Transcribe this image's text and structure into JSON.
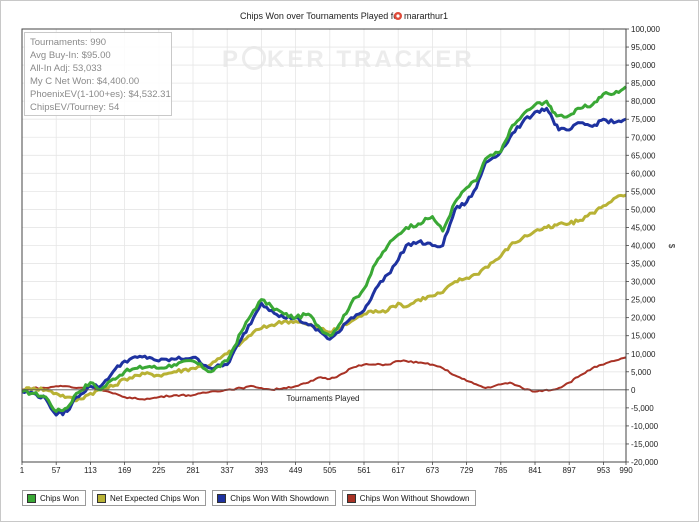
{
  "chart_data": {
    "type": "line",
    "title": "Chips Won over Tournaments Played for",
    "player": "mararthur1",
    "xlabel": "Tournaments Played",
    "ylabel": "$",
    "xlim": [
      1,
      990
    ],
    "ylim": [
      -20000,
      100000
    ],
    "x_ticks": [
      1,
      57,
      113,
      169,
      225,
      281,
      337,
      393,
      449,
      505,
      561,
      617,
      673,
      729,
      785,
      841,
      897,
      953,
      990
    ],
    "y_ticks": [
      -20000,
      -15000,
      -10000,
      -5000,
      0,
      5000,
      10000,
      15000,
      20000,
      25000,
      30000,
      35000,
      40000,
      45000,
      50000,
      55000,
      60000,
      65000,
      70000,
      75000,
      80000,
      85000,
      90000,
      95000,
      100000
    ],
    "y_tick_labels": [
      "-20,000",
      "-15,000",
      "-10,000",
      "-5,000",
      "0",
      "5,000",
      "10,000",
      "15,000",
      "20,000",
      "25,000",
      "30,000",
      "35,000",
      "40,000",
      "45,000",
      "50,000",
      "55,000",
      "60,000",
      "65,000",
      "70,000",
      "75,000",
      "80,000",
      "85,000",
      "90,000",
      "95,000",
      "100,000"
    ],
    "grid": true,
    "legend_position": "bottom-left",
    "series": [
      {
        "name": "Chips Won",
        "color": "#3aa835",
        "x": [
          1,
          20,
          40,
          57,
          75,
          90,
          113,
          130,
          150,
          169,
          190,
          210,
          225,
          250,
          281,
          310,
          337,
          360,
          380,
          393,
          410,
          430,
          449,
          470,
          490,
          505,
          520,
          540,
          561,
          580,
          600,
          617,
          630,
          650,
          673,
          690,
          710,
          729,
          745,
          760,
          785,
          800,
          820,
          841,
          860,
          870,
          880,
          897,
          915,
          935,
          953,
          970,
          990
        ],
        "y": [
          -500,
          -1000,
          -2000,
          -6000,
          -5000,
          -1000,
          2000,
          0,
          3000,
          5000,
          6000,
          6500,
          6000,
          7000,
          8000,
          5000,
          8000,
          16000,
          22000,
          25000,
          23000,
          21000,
          20000,
          21000,
          17000,
          15000,
          18000,
          24000,
          28000,
          35000,
          40000,
          43000,
          45000,
          46000,
          48000,
          44000,
          52000,
          56000,
          58000,
          64000,
          66000,
          72000,
          76000,
          79000,
          80000,
          77000,
          76000,
          76000,
          78000,
          79000,
          82000,
          82000,
          84000
        ]
      },
      {
        "name": "Net Expected Chips Won",
        "color": "#b8b235",
        "x": [
          1,
          20,
          40,
          57,
          75,
          90,
          113,
          130,
          150,
          169,
          190,
          210,
          225,
          250,
          281,
          310,
          337,
          360,
          380,
          393,
          410,
          430,
          449,
          470,
          490,
          505,
          520,
          540,
          561,
          580,
          600,
          617,
          630,
          650,
          673,
          690,
          710,
          729,
          745,
          760,
          785,
          800,
          820,
          841,
          860,
          870,
          880,
          897,
          915,
          935,
          953,
          970,
          990
        ],
        "y": [
          0,
          500,
          0,
          -1000,
          -2000,
          -3000,
          -1000,
          0,
          1000,
          3000,
          4000,
          4500,
          4000,
          5000,
          6000,
          7000,
          10000,
          13000,
          16000,
          17000,
          18000,
          19000,
          19000,
          18000,
          17000,
          16000,
          17000,
          19000,
          21000,
          22000,
          22000,
          24000,
          23000,
          25000,
          26000,
          27000,
          30000,
          31000,
          32000,
          34000,
          37000,
          40000,
          42000,
          44000,
          45000,
          45000,
          46000,
          46000,
          47000,
          49000,
          51000,
          53000,
          54000
        ]
      },
      {
        "name": "Chips Won With Showdown",
        "color": "#1e32a0",
        "x": [
          1,
          20,
          40,
          57,
          75,
          90,
          113,
          130,
          150,
          169,
          190,
          210,
          225,
          250,
          281,
          310,
          337,
          360,
          380,
          393,
          410,
          430,
          449,
          470,
          490,
          505,
          520,
          540,
          561,
          580,
          600,
          617,
          630,
          650,
          673,
          690,
          710,
          729,
          745,
          760,
          785,
          800,
          820,
          841,
          860,
          870,
          880,
          897,
          915,
          935,
          953,
          970,
          990
        ],
        "y": [
          -500,
          -1000,
          -2500,
          -7000,
          -6000,
          -2000,
          1000,
          1000,
          5000,
          8000,
          9000,
          9000,
          8000,
          8500,
          9000,
          6000,
          7000,
          14000,
          20000,
          24000,
          22000,
          20000,
          20000,
          18000,
          16000,
          14000,
          16000,
          20000,
          22000,
          28000,
          32000,
          36000,
          40000,
          41000,
          40000,
          40000,
          50000,
          52000,
          56000,
          63000,
          66000,
          70000,
          74000,
          77000,
          78000,
          75000,
          72000,
          72000,
          74000,
          73000,
          75000,
          74000,
          75000
        ]
      },
      {
        "name": "Chips Won Without Showdown",
        "color": "#a83225",
        "x": [
          1,
          20,
          40,
          57,
          75,
          90,
          113,
          130,
          150,
          169,
          190,
          210,
          225,
          250,
          281,
          310,
          337,
          360,
          380,
          393,
          410,
          430,
          449,
          470,
          490,
          505,
          520,
          540,
          561,
          580,
          600,
          617,
          630,
          650,
          673,
          690,
          710,
          729,
          745,
          760,
          785,
          800,
          820,
          841,
          860,
          870,
          880,
          897,
          915,
          935,
          953,
          970,
          990
        ],
        "y": [
          0,
          500,
          500,
          1000,
          1000,
          500,
          1000,
          0,
          -1000,
          -2000,
          -2500,
          -2500,
          -2000,
          -1500,
          -1500,
          -500,
          0,
          500,
          1000,
          500,
          0,
          500,
          1000,
          2000,
          3500,
          3000,
          4000,
          6000,
          7000,
          7000,
          7000,
          8000,
          8000,
          7500,
          7000,
          6000,
          4000,
          2500,
          1500,
          500,
          1500,
          2000,
          500,
          -500,
          0,
          0,
          500,
          2000,
          4000,
          6000,
          7000,
          8000,
          9000
        ]
      }
    ]
  },
  "stats_box": {
    "tournaments": "Tournaments: 990",
    "avg_buyin": "Avg Buy-In: $95.00",
    "allin_adj": "All-In Adj: 53,033",
    "my_c_net": "My C Net Won: $4,400.00",
    "phoenix_ev": "PhoenixEV(1-100+es): $4,532.31",
    "chips_ev": "ChipsEV/Tourney: 54"
  },
  "watermark": {
    "part1": "P",
    "part2": "KER",
    "part3": "TRACKER"
  }
}
